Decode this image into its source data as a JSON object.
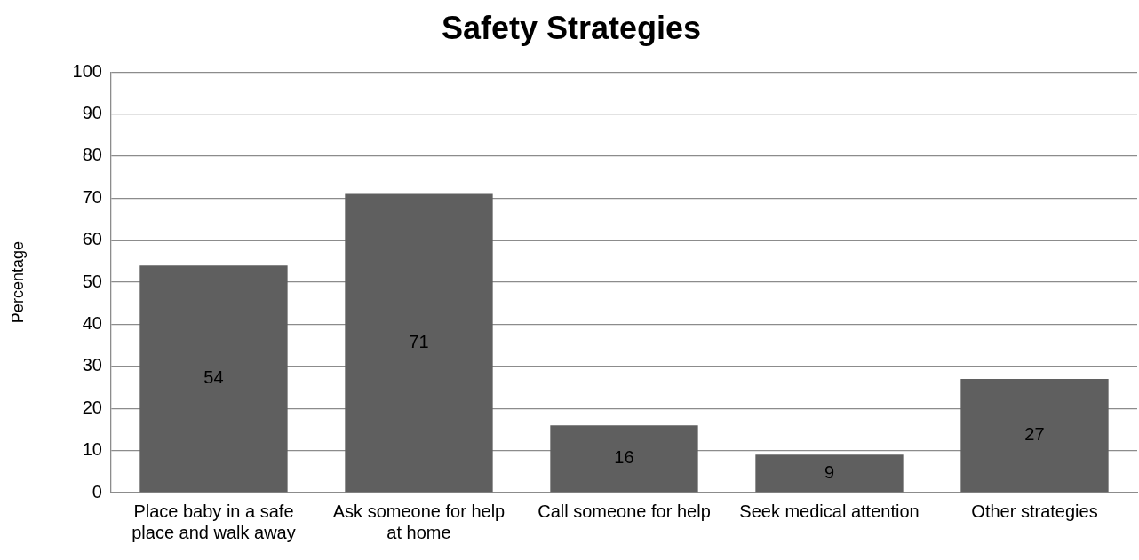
{
  "chart_data": {
    "type": "bar",
    "title": "Safety Strategies",
    "ylabel": "Percentage",
    "categories": [
      "Place baby in a safe place and walk away",
      "Ask someone for help at home",
      "Call someone for help",
      "Seek medical attention",
      "Other strategies"
    ],
    "values": [
      54,
      71,
      16,
      9,
      27
    ],
    "color": "#5f5f5f",
    "ylim": [
      0,
      100
    ],
    "yticks": [
      0,
      10,
      20,
      30,
      40,
      50,
      60,
      70,
      80,
      90,
      100
    ],
    "grid": "y",
    "data_labels": true
  }
}
